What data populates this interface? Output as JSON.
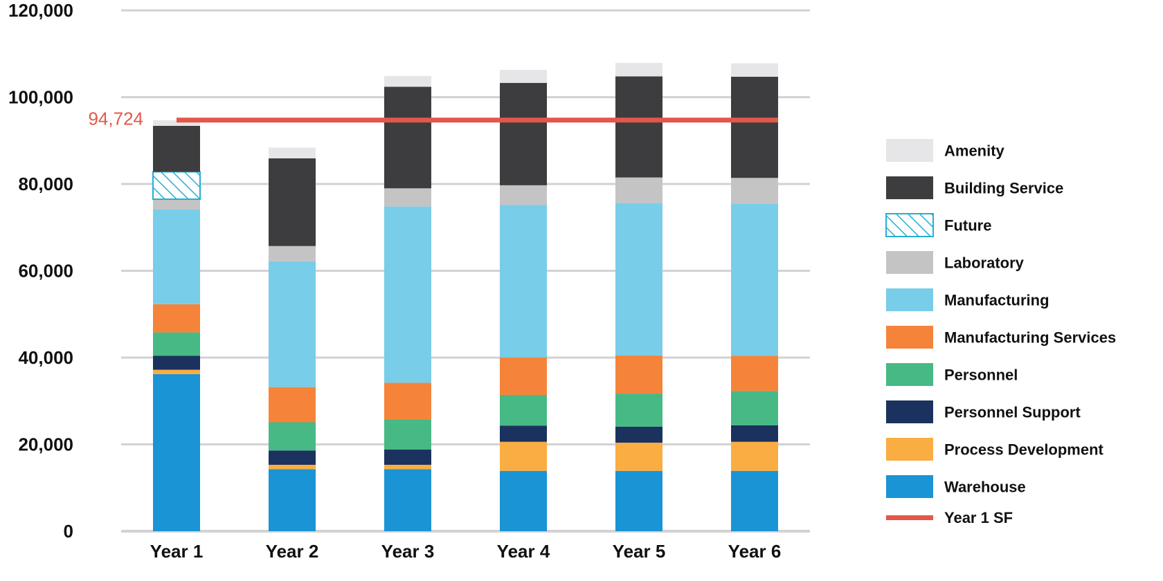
{
  "chart_data": {
    "type": "bar",
    "stacked": true,
    "title": "",
    "xlabel": "",
    "ylabel": "",
    "ylim": [
      0,
      120000
    ],
    "yticks": [
      0,
      20000,
      40000,
      60000,
      80000,
      100000,
      120000
    ],
    "ytick_labels": [
      "0",
      "20,000",
      "40,000",
      "60,000",
      "80,000",
      "100,000",
      "120,000"
    ],
    "grid": true,
    "legend_position": "right",
    "categories": [
      "Year 1",
      "Year 2",
      "Year 3",
      "Year 4",
      "Year 5",
      "Year 6"
    ],
    "series": [
      {
        "name": "Warehouse",
        "color": "#1a94d4",
        "pattern": "solid",
        "values": [
          36200,
          14300,
          14300,
          13900,
          13900,
          13900
        ]
      },
      {
        "name": "Process Development",
        "color": "#f9ad42",
        "pattern": "solid",
        "values": [
          1000,
          1000,
          1000,
          6700,
          6500,
          6700
        ]
      },
      {
        "name": "Personnel Support",
        "color": "#1b325e",
        "pattern": "solid",
        "values": [
          3200,
          3300,
          3500,
          3700,
          3700,
          3800
        ]
      },
      {
        "name": "Personnel",
        "color": "#46b985",
        "pattern": "solid",
        "values": [
          5400,
          6500,
          7000,
          7100,
          7600,
          7900
        ]
      },
      {
        "name": "Manufacturing Services",
        "color": "#f5843a",
        "pattern": "solid",
        "values": [
          6500,
          8100,
          8400,
          8600,
          8800,
          8100
        ]
      },
      {
        "name": "Manufacturing",
        "color": "#78cde9",
        "pattern": "solid",
        "values": [
          21800,
          29000,
          40600,
          35200,
          35100,
          35100
        ]
      },
      {
        "name": "Laboratory",
        "color": "#c4c4c4",
        "pattern": "solid",
        "values": [
          2400,
          3500,
          4200,
          4500,
          5900,
          5900
        ]
      },
      {
        "name": "Future",
        "color": "#24aed3",
        "pattern": "hatch",
        "values": [
          6300,
          0,
          0,
          0,
          0,
          0
        ]
      },
      {
        "name": "Building Service",
        "color": "#3d3d3f",
        "pattern": "solid",
        "values": [
          10600,
          20200,
          23400,
          23600,
          23300,
          23300
        ]
      },
      {
        "name": "Amenity",
        "color": "#e6e6e8",
        "pattern": "solid",
        "values": [
          1300,
          2500,
          2500,
          3000,
          3100,
          3100
        ]
      }
    ],
    "legend_order": [
      "Amenity",
      "Building Service",
      "Future",
      "Laboratory",
      "Manufacturing",
      "Manufacturing Services",
      "Personnel",
      "Personnel Support",
      "Process Development",
      "Warehouse"
    ],
    "reference_line": {
      "name": "Year 1 SF",
      "value": 94724,
      "label": "94,724",
      "color": "#e3574a",
      "from_category": "Year 1",
      "to_category": "Year 6"
    }
  }
}
